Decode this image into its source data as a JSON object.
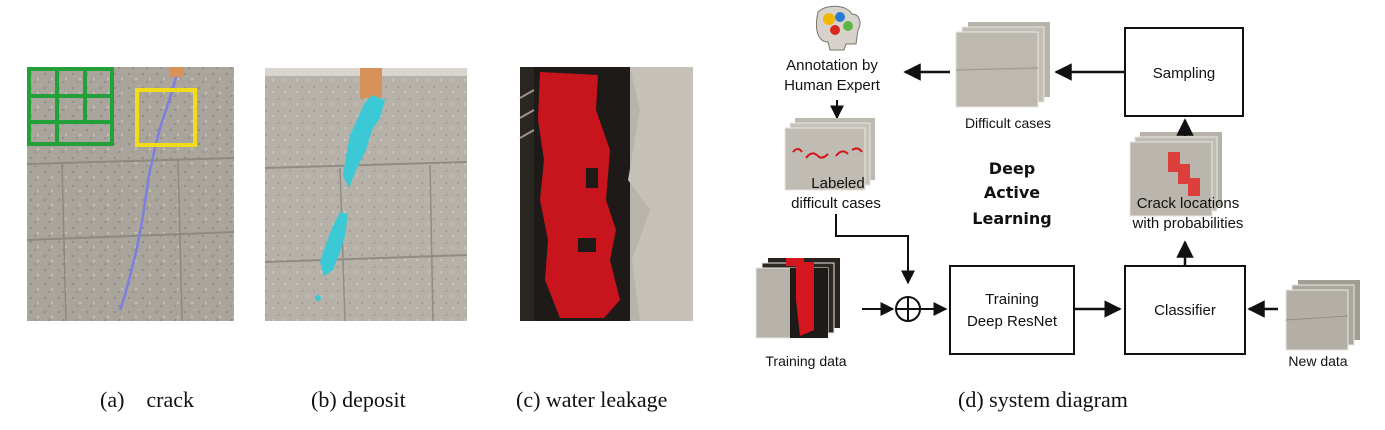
{
  "captions": {
    "a": "(a)    crack",
    "b": "(b) deposit",
    "c": "(c) water leakage",
    "d": "(d) system diagram"
  },
  "diagram": {
    "annotation_line1": "Annotation by",
    "annotation_line2": "Human Expert",
    "difficult_cases": "Difficult cases",
    "sampling": "Sampling",
    "labeled_line1": "Labeled",
    "labeled_line2": "difficult cases",
    "center_line1": "Deep",
    "center_line2": "Active",
    "center_line3": "Learning",
    "crack_loc_line1": "Crack locations",
    "crack_loc_line2": "with probabilities",
    "training_line1": "Training",
    "training_line2": "Deep ResNet",
    "classifier": "Classifier",
    "training_data": "Training data",
    "new_data": "New data"
  },
  "colors": {
    "green_grid": "#22a13a",
    "yellow_box": "#f2dc1a",
    "crack_blue": "#7b7fe0",
    "deposit_cyan": "#3cc9d6",
    "leak_red": "#c8141c",
    "concrete": "#a7a39b",
    "crack_red_label": "#d6161e"
  }
}
